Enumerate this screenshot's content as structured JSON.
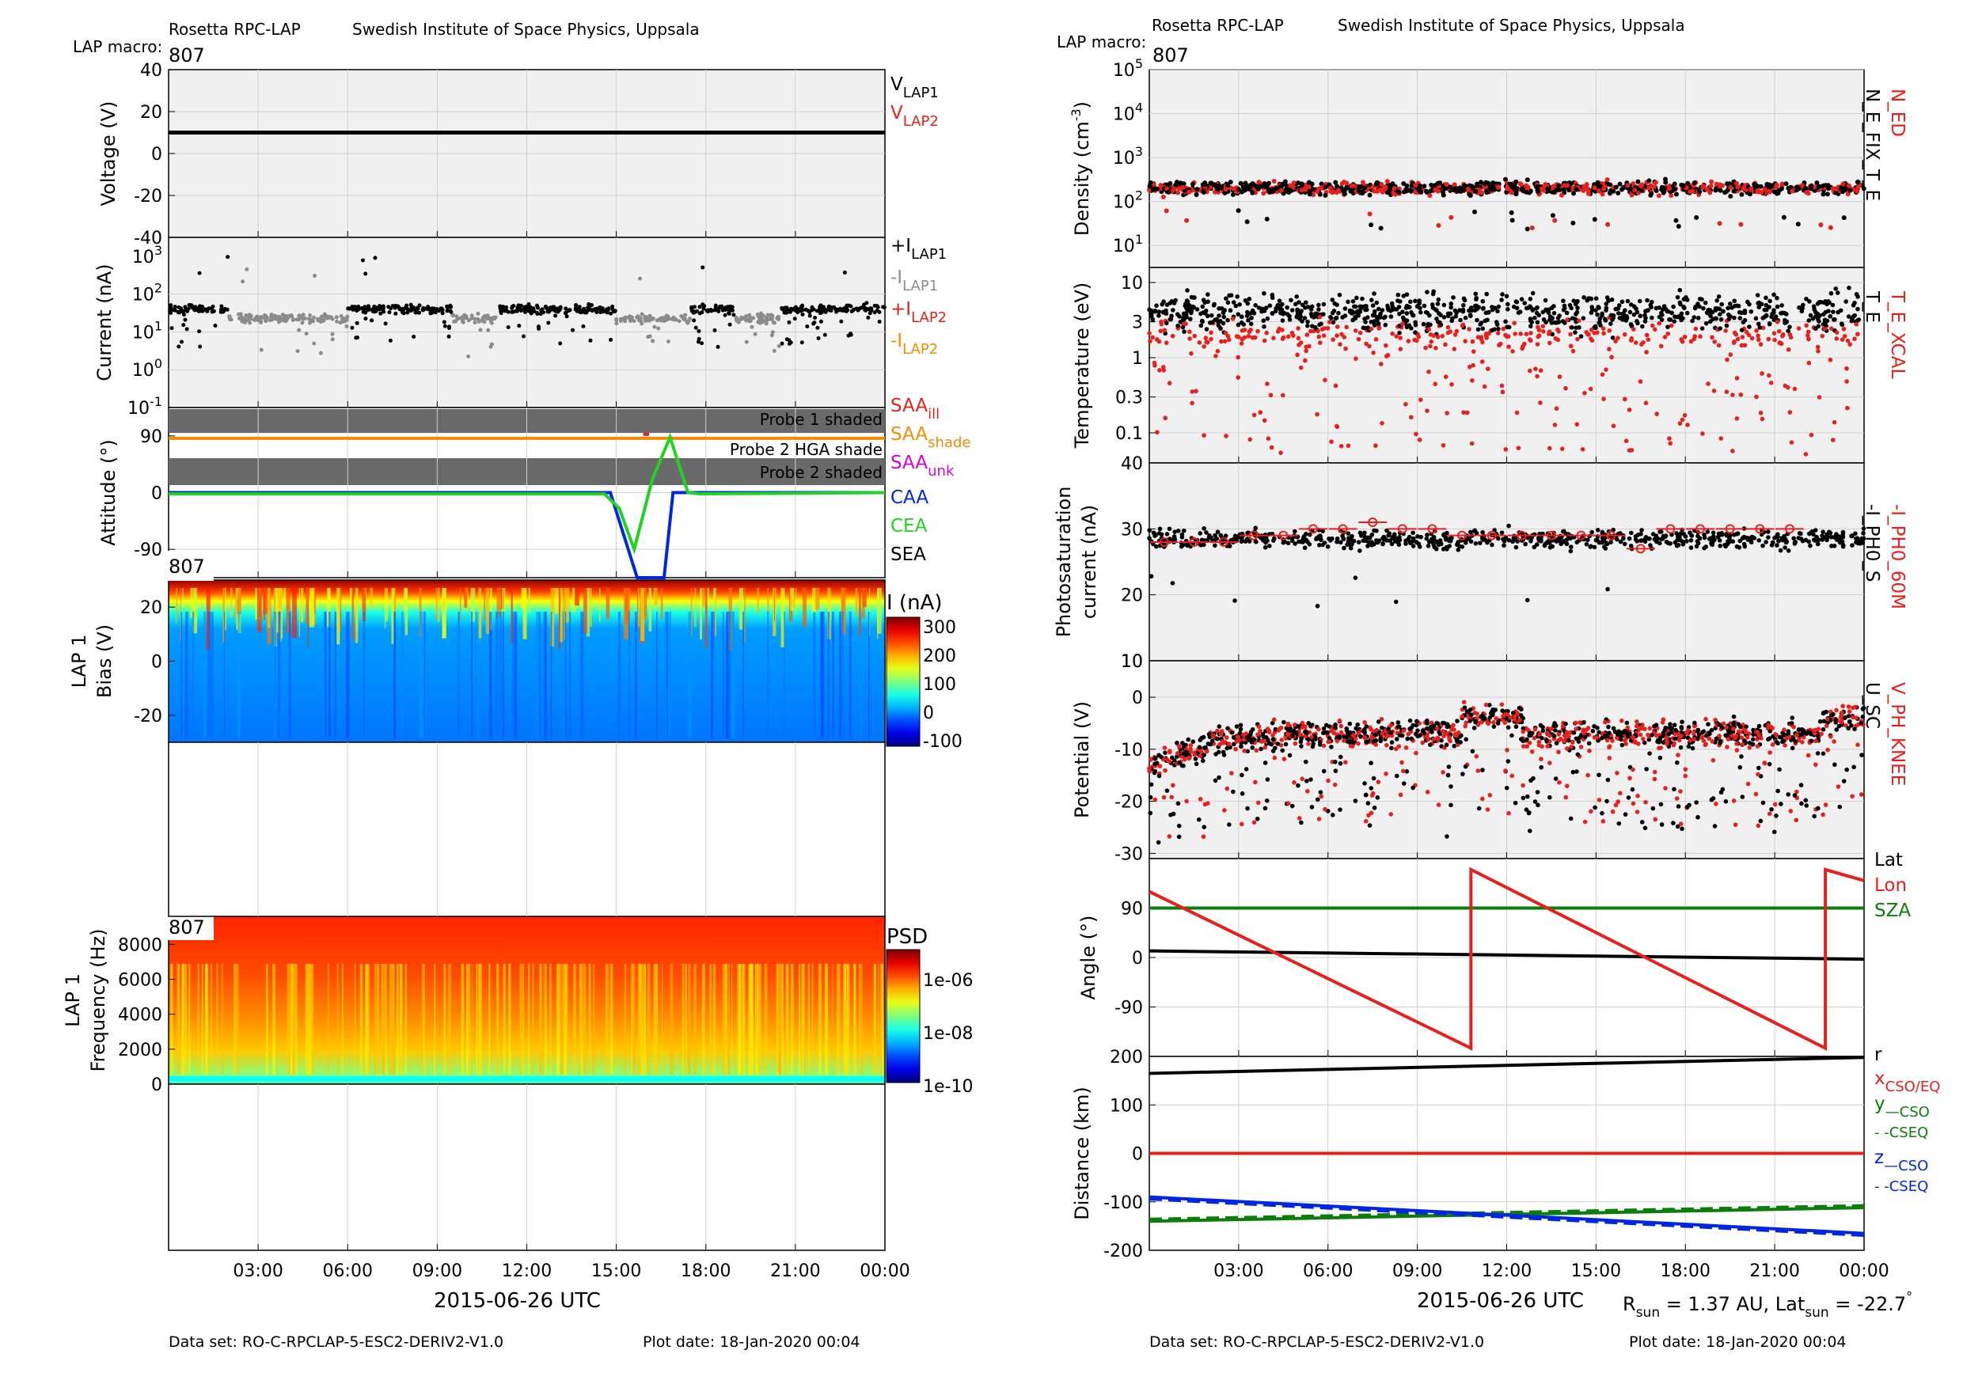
{
  "header": {
    "instrument": "Rosetta RPC-LAP",
    "institute": "Swedish Institute of Space Physics, Uppsala",
    "macro_label": "LAP macro:",
    "macro_value": "807"
  },
  "footer": {
    "dataset": "Data set: RO-C-RPCLAP-5-ESC2-DERIV2-V1.0",
    "plotdate": "Plot date: 18-Jan-2020 00:04",
    "xlabel": "2015-06-26 UTC",
    "rsun_text": "R",
    "rsun_sub": "sun",
    "rsun_val": " = 1.37 AU, Lat",
    "lat_sub": "sun",
    "lat_val": " = -22.7",
    "deg": "°"
  },
  "time_ticks": [
    "03:00",
    "06:00",
    "09:00",
    "12:00",
    "15:00",
    "18:00",
    "21:00",
    "00:00"
  ],
  "colors": {
    "black": "#000000",
    "red": "#e8201c",
    "gray": "#8c8c8c",
    "orange": "#f28c00",
    "magenta": "#d400d4",
    "blue": "#0026e0",
    "green": "#22d222",
    "darkgreen": "#0a7d0a",
    "panel_bg": "#f0f0f0"
  },
  "left": {
    "voltage": {
      "ylabel": "Voltage (V)",
      "ticks": [
        "40",
        "20",
        "0",
        "-20",
        "-40"
      ],
      "legend": [
        {
          "base": "V",
          "sub": "LAP1",
          "color": "black"
        },
        {
          "base": "V",
          "sub": "LAP2",
          "color": "red"
        }
      ]
    },
    "current": {
      "ylabel": "Current (nA)",
      "ticks": [
        {
          "b": "10",
          "e": "3"
        },
        {
          "b": "10",
          "e": "2"
        },
        {
          "b": "10",
          "e": "1"
        },
        {
          "b": "10",
          "e": "0"
        },
        {
          "b": "10",
          "e": "-1"
        }
      ],
      "legend": [
        {
          "base": "+I",
          "sub": "LAP1",
          "color": "black"
        },
        {
          "base": "-I",
          "sub": "LAP1",
          "color": "gray"
        },
        {
          "base": "+I",
          "sub": "LAP2",
          "color": "red"
        },
        {
          "base": "-I",
          "sub": "LAP2",
          "color": "orange"
        }
      ]
    },
    "attitude": {
      "ylabel": "Attitude (°)",
      "ticks": [
        "90",
        "0",
        "-90"
      ],
      "shade1": "Probe 1 shaded",
      "shade2": "Probe 2 HGA shade",
      "shade3": "Probe 2 shaded",
      "legend": [
        {
          "base": "SAA",
          "sub": "ill",
          "color": "red"
        },
        {
          "base": "SAA",
          "sub": "shade",
          "color": "orange"
        },
        {
          "base": "SAA",
          "sub": "unk",
          "color": "magenta"
        },
        {
          "base": "CAA",
          "sub": "",
          "color": "blue"
        },
        {
          "base": "CEA",
          "sub": "",
          "color": "green"
        },
        {
          "base": "SEA",
          "sub": "",
          "color": "black"
        }
      ]
    },
    "spec1": {
      "ylabel1": "LAP 1",
      "ylabel2": "Bias (V)",
      "ticks": [
        "20",
        "0",
        "-20"
      ],
      "badge": "807",
      "cbar_label": "I (nA)",
      "cbar_ticks": [
        "300",
        "200",
        "100",
        "0",
        "-100"
      ]
    },
    "spec2": {
      "ylabel1": "LAP 1",
      "ylabel2": "Frequency (Hz)",
      "ticks": [
        "8000",
        "6000",
        "4000",
        "2000",
        "0"
      ],
      "badge": "807",
      "cbar_label": "PSD",
      "cbar_ticks": [
        "1e-06",
        "1e-08",
        "1e-10"
      ]
    }
  },
  "right": {
    "density": {
      "ylabel": "Density (cm",
      "ylabel_exp": "-3",
      "ylabel_end": ")",
      "ticks": [
        {
          "b": "10",
          "e": "5"
        },
        {
          "b": "10",
          "e": "4"
        },
        {
          "b": "10",
          "e": "3"
        },
        {
          "b": "10",
          "e": "2"
        },
        {
          "b": "10",
          "e": "1"
        }
      ],
      "legend": [
        {
          "text": "N_ED",
          "color": "red"
        },
        {
          "text": "N_E_FIX_T_E",
          "color": "black"
        }
      ]
    },
    "temperature": {
      "ylabel": "Temperature (eV)",
      "ticks": [
        "10",
        "3",
        "1",
        "0.3",
        "0.1",
        "40"
      ],
      "legend": [
        {
          "text": "T_E_XCAL",
          "color": "red"
        },
        {
          "text": "T_E",
          "color": "black"
        }
      ]
    },
    "photo": {
      "ylabel1": "Photosaturation",
      "ylabel2": "current (nA)",
      "ticks": [
        "30",
        "20",
        "10",
        "10"
      ],
      "legend": [
        {
          "text": "-I_PH0_60M",
          "color": "red"
        },
        {
          "text": "-I_PH0_S",
          "color": "black"
        }
      ]
    },
    "potential": {
      "ylabel": "Potential (V)",
      "ticks": [
        "0",
        "-10",
        "-20",
        "-30"
      ],
      "legend": [
        {
          "text": "V_PH_KNEE",
          "color": "red"
        },
        {
          "text": "U_SC",
          "color": "black"
        }
      ]
    },
    "angle": {
      "ylabel": "Angle (°)",
      "ticks": [
        "90",
        "0",
        "-90"
      ],
      "legend": [
        {
          "text": "Lat",
          "color": "black"
        },
        {
          "text": "Lon",
          "color": "red"
        },
        {
          "text": "SZA",
          "color": "darkgreen"
        }
      ]
    },
    "distance": {
      "ylabel": "Distance (km)",
      "ticks": [
        "200",
        "100",
        "0",
        "-100",
        "-200"
      ],
      "legend": [
        {
          "base": "r",
          "sub": "",
          "color": "black"
        },
        {
          "base": "x",
          "sub": "CSO/EQ",
          "color": "red"
        },
        {
          "base": "y",
          "sub": "—CSO",
          "color": "darkgreen"
        },
        {
          "base": "",
          "sub": "- -CSEQ",
          "color": "darkgreen"
        },
        {
          "base": "z",
          "sub": "—CSO",
          "color": "blue"
        },
        {
          "base": "",
          "sub": "- -CSEQ",
          "color": "blue"
        }
      ]
    }
  },
  "chart_data": [
    {
      "type": "line",
      "title": "",
      "ylabel": "Voltage (V)",
      "ylim": [
        -40,
        40
      ],
      "x": [
        "00:00",
        "24:00"
      ],
      "series": [
        {
          "name": "V_LAP1",
          "values": [
            10,
            10
          ]
        }
      ]
    },
    {
      "type": "scatter",
      "ylabel": "Current (nA)",
      "yscale": "log",
      "ylim": [
        0.1,
        3000
      ],
      "series": [
        {
          "name": "+I_LAP1",
          "typical": 40
        },
        {
          "name": "-I_LAP1",
          "typical": 20
        }
      ]
    },
    {
      "type": "line",
      "ylabel": "Attitude (°)",
      "ylim": [
        -135,
        135
      ],
      "x_hours": [
        0,
        14.8,
        15.4,
        15.7,
        16.6,
        16.9,
        17.4,
        24
      ],
      "series": [
        {
          "name": "CAA",
          "values": [
            0,
            0,
            -90,
            -135,
            -135,
            0,
            0,
            0
          ]
        },
        {
          "name": "CEA",
          "values": [
            0,
            0,
            -45,
            -90,
            40,
            90,
            0,
            0
          ]
        },
        {
          "name": "SAA_ill",
          "values": [
            90,
            90,
            90,
            90,
            90,
            90,
            90,
            90
          ]
        }
      ]
    },
    {
      "type": "heatmap",
      "ylabel": "Bias (V)",
      "ylim": [
        -30,
        30
      ],
      "colorbar": "I (nA)",
      "clim": [
        -100,
        350
      ]
    },
    {
      "type": "heatmap",
      "ylabel": "Frequency (Hz)",
      "ylim": [
        0,
        9600
      ],
      "colorbar": "PSD",
      "clim": [
        "1e-10",
        "1e-05"
      ]
    },
    {
      "type": "scatter",
      "ylabel": "Density (cm-3)",
      "yscale": "log",
      "ylim": [
        10,
        100000
      ],
      "series": [
        {
          "name": "N_ED",
          "typical": 200
        },
        {
          "name": "N_E_FIX_T_E",
          "typical": 200
        }
      ]
    },
    {
      "type": "scatter",
      "ylabel": "Temperature (eV)",
      "yscale": "log",
      "ylim": [
        0.04,
        15
      ],
      "series": [
        {
          "name": "T_E_XCAL",
          "typical": 2
        },
        {
          "name": "T_E",
          "typical": 4
        }
      ]
    },
    {
      "type": "scatter",
      "ylabel": "Photosaturation current (nA)",
      "ylim": [
        10,
        40
      ],
      "series": [
        {
          "name": "-I_PH0_60M",
          "x_hours": [
            0.5,
            1.5,
            2.5,
            3.5,
            4.5,
            5.5,
            6.5,
            7.5,
            8.5,
            9.5,
            10.5,
            11.5,
            12.5,
            13.5,
            14.5,
            15.5,
            16.5,
            17.5,
            18.5,
            19.5,
            20.5,
            21.5
          ],
          "values": [
            28,
            28,
            28,
            29,
            29,
            30,
            30,
            31,
            30,
            30,
            29,
            29,
            29,
            29,
            29,
            29,
            27,
            30,
            30,
            30,
            30,
            30
          ]
        },
        {
          "name": "-I_PH0_S",
          "typical": 28
        }
      ]
    },
    {
      "type": "scatter",
      "ylabel": "Potential (V)",
      "ylim": [
        -30,
        5
      ],
      "series": [
        {
          "name": "V_PH_KNEE",
          "typical": -8
        },
        {
          "name": "U_SC",
          "typical": -8
        }
      ]
    },
    {
      "type": "line",
      "ylabel": "Angle (°)",
      "ylim": [
        -180,
        180
      ],
      "x_hours": [
        0,
        10.8,
        10.8,
        22.7,
        22.7,
        24
      ],
      "series": [
        {
          "name": "Lat",
          "x_hours": [
            0,
            24
          ],
          "values": [
            12,
            -3
          ]
        },
        {
          "name": "Lon",
          "values": [
            120,
            -165,
            160,
            -165,
            160,
            140
          ]
        },
        {
          "name": "SZA",
          "x_hours": [
            0,
            24
          ],
          "values": [
            90,
            90
          ]
        }
      ]
    },
    {
      "type": "line",
      "ylabel": "Distance (km)",
      "ylim": [
        -200,
        200
      ],
      "x_hours": [
        0,
        24
      ],
      "series": [
        {
          "name": "r",
          "values": [
            165,
            198
          ]
        },
        {
          "name": "x CSO/EQ",
          "values": [
            0,
            0
          ]
        },
        {
          "name": "y CSO",
          "values": [
            -140,
            -112
          ]
        },
        {
          "name": "z CSO",
          "values": [
            -90,
            -165
          ]
        }
      ]
    }
  ]
}
